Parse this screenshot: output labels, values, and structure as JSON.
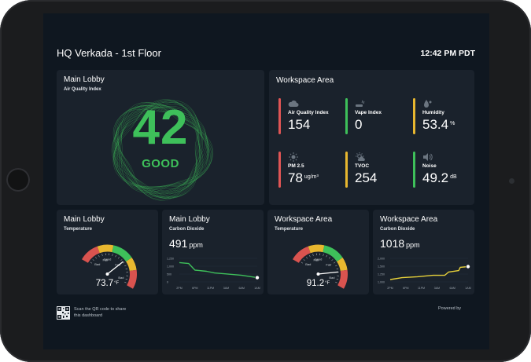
{
  "header": {
    "title": "HQ Verkada - 1st Floor",
    "time": "12:42 PM PDT"
  },
  "aqi_card": {
    "title": "Main Lobby",
    "subtitle": "Air Quality Index",
    "value": "42",
    "status": "GOOD",
    "accent": "#3ec05a"
  },
  "workspace_card": {
    "title": "Workspace  Area",
    "metrics": [
      {
        "icon": "cloud-icon",
        "label": "Air Quality Index",
        "value": "154",
        "unit": "",
        "color": "#e05555"
      },
      {
        "icon": "vape-icon",
        "label": "Vape Index",
        "value": "0",
        "unit": "",
        "color": "#3ec05a"
      },
      {
        "icon": "droplet-icon",
        "label": "Humidity",
        "value": "53.4",
        "unit": "%",
        "color": "#e8b72f"
      },
      {
        "icon": "sun-icon",
        "label": "PM 2.5",
        "value": "78",
        "unit": "ug/m³",
        "color": "#e05555"
      },
      {
        "icon": "sun-cloud-icon",
        "label": "TVOC",
        "value": "254",
        "unit": "",
        "color": "#e8b72f"
      },
      {
        "icon": "speaker-icon",
        "label": "Noise",
        "value": "49.2",
        "unit": "dB",
        "color": "#3ec05a"
      }
    ]
  },
  "gauge_lobby": {
    "title": "Main Lobby",
    "subtitle": "Temperature",
    "value": "73.7",
    "unit": "°F",
    "needle_fraction": 0.62,
    "labels": {
      "bad_left": "Bad",
      "fair_left": "Fair",
      "good": "Good",
      "fair_right": "Fair",
      "bad_right": "Bad"
    }
  },
  "co2_lobby": {
    "title": "Main Lobby",
    "subtitle": "Carbon Dioxide",
    "value": "491",
    "unit": "ppm",
    "color": "#3ec05a",
    "y_ticks": [
      "1,250",
      "1,000",
      "500",
      "0"
    ],
    "x_ticks": [
      "2PM",
      "6PM",
      "11PM",
      "3AM",
      "6AM",
      "1AM"
    ]
  },
  "gauge_workspace": {
    "title": "Workspace Area",
    "subtitle": "Temperature",
    "value": "91.2",
    "unit": "°F",
    "needle_fraction": 0.8,
    "labels": {
      "bad_left": "Bad",
      "fair_left": "Fair",
      "good": "Good",
      "fair_right": "Fair",
      "bad_right": "Bad"
    }
  },
  "co2_workspace": {
    "title": "Workspace Area",
    "subtitle": "Carbon Dioxide",
    "value": "1018",
    "unit": "ppm",
    "color": "#e8d23a",
    "y_ticks": [
      "2,000",
      "1,500",
      "1,250",
      "1,000"
    ],
    "x_ticks": [
      "2PM",
      "6PM",
      "11PM",
      "3AM",
      "6AM",
      "1AM"
    ]
  },
  "footer": {
    "qr_text": "Scan the QR code to share this dashboard",
    "powered_by": "Powered by"
  }
}
